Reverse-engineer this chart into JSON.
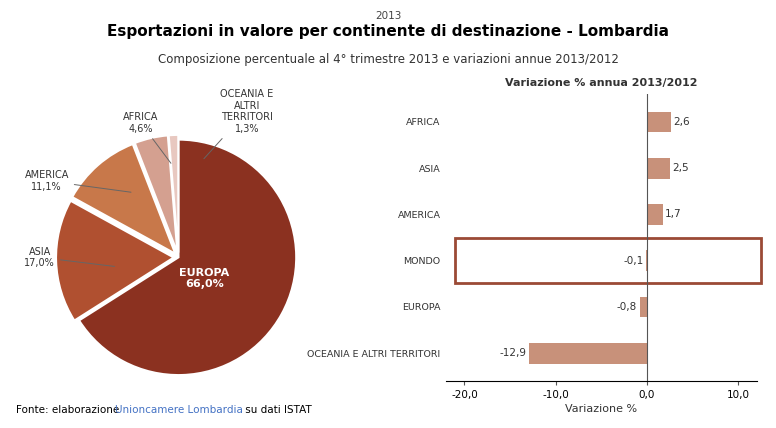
{
  "title_year": "2013",
  "title_main": "Esportazioni in valore per continente di destinazione - Lombardia",
  "title_sub": "Composizione percentuale al 4° trimestre 2013 e variazioni annue 2013/2012",
  "pie_values": [
    66.0,
    17.0,
    11.1,
    4.6,
    1.3
  ],
  "pie_colors": [
    "#8B3120",
    "#B05030",
    "#C8784A",
    "#D4A090",
    "#E8C8C0"
  ],
  "bar_categories": [
    "AFRICA",
    "ASIA",
    "AMERICA",
    "MONDO",
    "EUROPA",
    "OCEANIA E ALTRI TERRITORI"
  ],
  "bar_values": [
    2.6,
    2.5,
    1.7,
    -0.1,
    -0.8,
    -12.9
  ],
  "bar_color": "#C8917A",
  "bar_chart_title": "Variazione % annua 2013/2012",
  "bar_xlabel": "Variazione %",
  "xticks": [
    -20.0,
    -10.0,
    0.0,
    10.0
  ],
  "background_color": "#FFFFFF",
  "mondo_box_color": "#9B4A35"
}
